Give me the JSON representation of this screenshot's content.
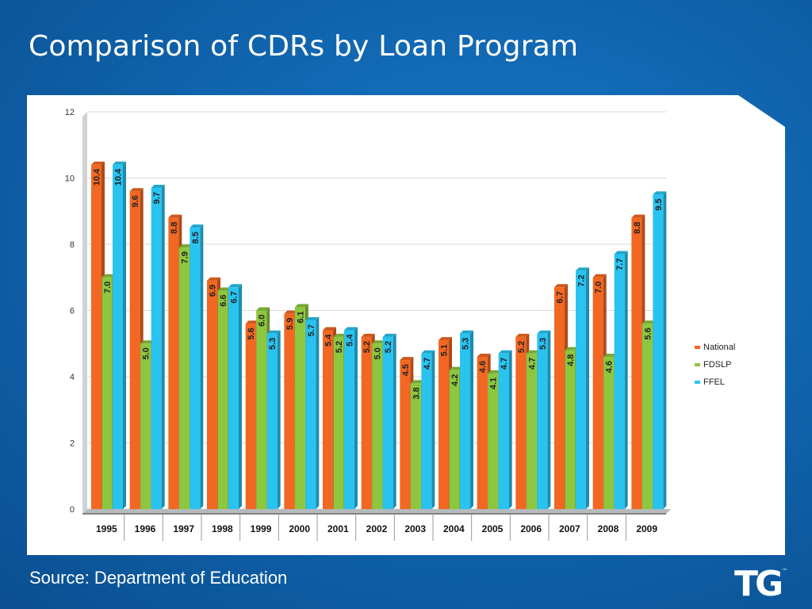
{
  "slide": {
    "title": "Comparison of CDRs by Loan Program",
    "source": "Source: Department of Education",
    "logo_text": "TG",
    "logo_mark": "™"
  },
  "chart_data": {
    "type": "bar",
    "title": "",
    "xlabel": "",
    "ylabel": "",
    "ylim": [
      0,
      12
    ],
    "yticks": [
      0,
      2,
      4,
      6,
      8,
      10,
      12
    ],
    "grid": true,
    "legend_position": "right",
    "categories": [
      "1995",
      "1996",
      "1997",
      "1998",
      "1999",
      "2000",
      "2001",
      "2002",
      "2003",
      "2004",
      "2005",
      "2006",
      "2007",
      "2008",
      "2009"
    ],
    "series": [
      {
        "name": "National",
        "color": "#f26722",
        "values": [
          10.4,
          9.6,
          8.8,
          6.9,
          5.6,
          5.9,
          5.4,
          5.2,
          4.5,
          5.1,
          4.6,
          5.2,
          6.7,
          7.0,
          8.8
        ]
      },
      {
        "name": "FDSLP",
        "color": "#8dc63f",
        "values": [
          7.0,
          5.0,
          7.9,
          6.6,
          6.0,
          6.1,
          5.2,
          5.0,
          3.8,
          4.2,
          4.1,
          4.7,
          4.8,
          4.6,
          5.6
        ]
      },
      {
        "name": "FFEL",
        "color": "#29c3f0",
        "values": [
          10.4,
          9.7,
          8.5,
          6.7,
          5.3,
          5.7,
          5.4,
          5.2,
          4.7,
          5.3,
          4.7,
          5.3,
          7.2,
          7.7,
          9.5
        ]
      }
    ]
  }
}
